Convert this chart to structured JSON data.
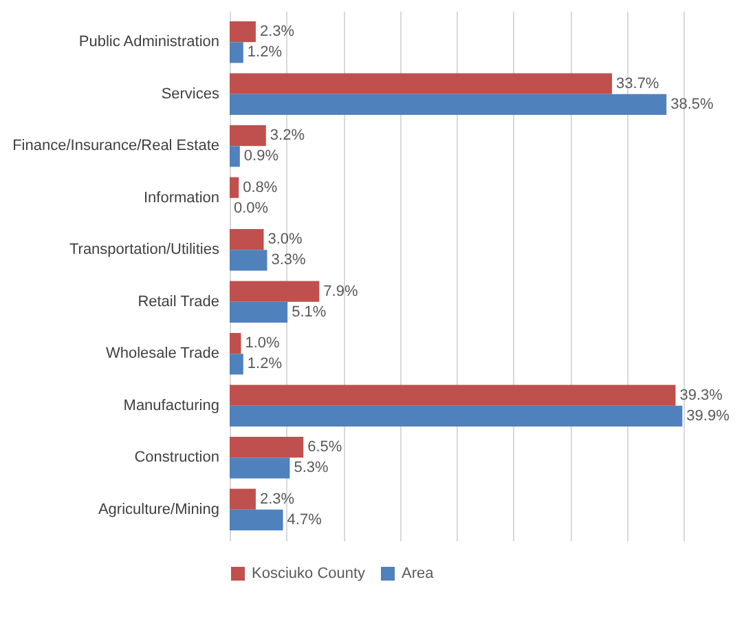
{
  "chart_data": {
    "type": "bar",
    "orientation": "horizontal",
    "categories": [
      "Public Administration",
      "Services",
      "Finance/Insurance/Real Estate",
      "Information",
      "Transportation/Utilities",
      "Retail Trade",
      "Wholesale Trade",
      "Manufacturing",
      "Construction",
      "Agriculture/Mining"
    ],
    "series": [
      {
        "name": "Kosciuko County",
        "color": "#c0504d",
        "values": [
          2.3,
          33.7,
          3.2,
          0.8,
          3.0,
          7.9,
          1.0,
          39.3,
          6.5,
          2.3
        ],
        "value_labels": [
          "2.3%",
          "33.7%",
          "3.2%",
          "0.8%",
          "3.0%",
          "7.9%",
          "1.0%",
          "39.3%",
          "6.5%",
          "2.3%"
        ]
      },
      {
        "name": "Area",
        "color": "#4f81bd",
        "values": [
          1.2,
          38.5,
          0.9,
          0.0,
          3.3,
          5.1,
          1.2,
          39.9,
          5.3,
          4.7
        ],
        "value_labels": [
          "1.2%",
          "38.5%",
          "0.9%",
          "0.0%",
          "3.3%",
          "5.1%",
          "1.2%",
          "39.9%",
          "5.3%",
          "4.7%"
        ]
      }
    ],
    "tick_labels": "y",
    "grid": "x",
    "legend": "bottom"
  }
}
